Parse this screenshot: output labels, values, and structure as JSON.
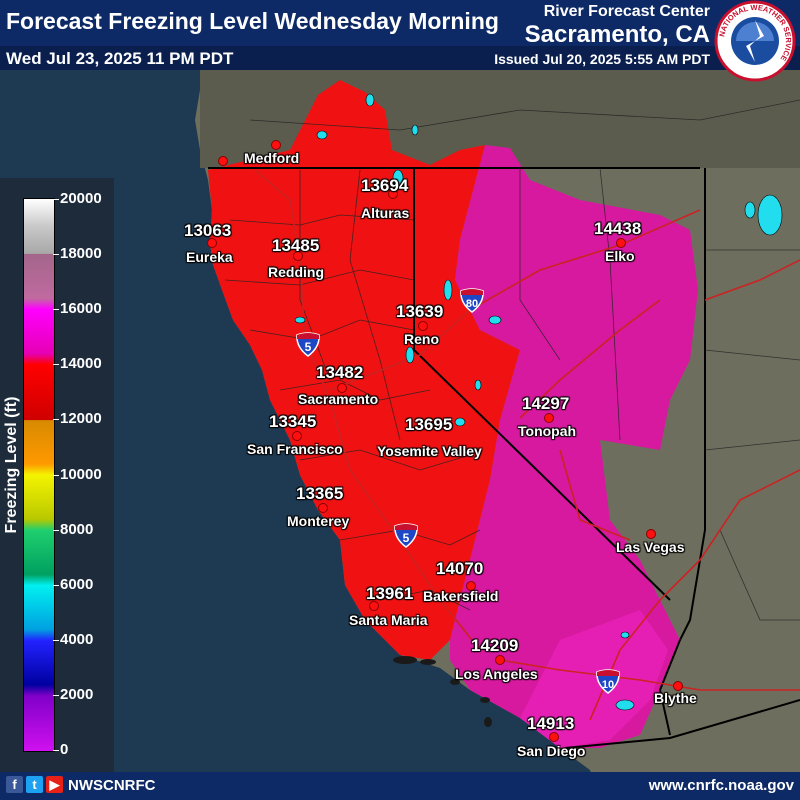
{
  "header": {
    "title": "Forecast Freezing Level Wednesday Morning",
    "valid_time": "Wed Jul 23, 2025 11 PM PDT",
    "agency": "River Forecast Center",
    "office": "Sacramento, CA",
    "issued": "Issued Jul 20, 2025 5:55 AM PDT",
    "logo_icon": "nws-logo-icon",
    "logo_text": "NATIONAL WEATHER SERVICE"
  },
  "legend": {
    "title": "Freezing Level (ft)",
    "ticks": [
      "20000",
      "18000",
      "16000",
      "14000",
      "12000",
      "10000",
      "8000",
      "6000",
      "4000",
      "2000",
      "0"
    ],
    "colors": {
      "white_top": "#ffffff",
      "gray": "#a8a8a8",
      "mauve": "#a3668a",
      "magenta": "#ff00ff",
      "red": "#ff0000",
      "dark_red": "#cf0000",
      "orange": "#ff9900",
      "yellow": "#f4f400",
      "green": "#1fcf6e",
      "cyan": "#00f0f0",
      "blue": "#2222ff",
      "purple": "#8000c8"
    }
  },
  "map": {
    "colors": {
      "ocean": "#1e3a52",
      "land": "#6e6e5e",
      "forecast_red": "#f01212",
      "forecast_magenta": "#d6199e",
      "boundary": "#000000",
      "roads": "#cc2222",
      "lakes": "#22ddee"
    },
    "values": [
      {
        "value": "13694",
        "area": "Alturas"
      },
      {
        "value": "13063",
        "area": "Eureka"
      },
      {
        "value": "13485",
        "area": "Redding"
      },
      {
        "value": "14438",
        "area": "Elko"
      },
      {
        "value": "13639",
        "area": "Reno"
      },
      {
        "value": "13482",
        "area": "Sacramento"
      },
      {
        "value": "14297",
        "area": "Tonopah"
      },
      {
        "value": "13345",
        "area": "San Francisco"
      },
      {
        "value": "13695",
        "area": "Yosemite Valley"
      },
      {
        "value": "13365",
        "area": "Monterey"
      },
      {
        "value": "14070",
        "area": "Bakersfield"
      },
      {
        "value": "13961",
        "area": "Santa Maria"
      },
      {
        "value": "14209",
        "area": "Los Angeles"
      },
      {
        "value": "14913",
        "area": "San Diego"
      }
    ],
    "cities": [
      "Medford",
      "Alturas",
      "Eureka",
      "Redding",
      "Elko",
      "Reno",
      "Sacramento",
      "Tonopah",
      "San Francisco",
      "Yosemite Valley",
      "Monterey",
      "Las Vegas",
      "Bakersfield",
      "Santa Maria",
      "Los Angeles",
      "Blythe",
      "San Diego"
    ],
    "interstates": [
      {
        "route": "80",
        "icon": "interstate-80-shield-icon"
      },
      {
        "route": "5",
        "icon": "interstate-5-shield-icon"
      },
      {
        "route": "5",
        "icon": "interstate-5-shield-icon"
      },
      {
        "route": "10",
        "icon": "interstate-10-shield-icon"
      }
    ]
  },
  "footer": {
    "social_icons": [
      {
        "icon": "facebook-icon",
        "glyph": "f",
        "color": "#3b5998"
      },
      {
        "icon": "twitter-icon",
        "glyph": "t",
        "color": "#1da1f2"
      },
      {
        "icon": "youtube-icon",
        "glyph": "▶",
        "color": "#e62117"
      }
    ],
    "handle": "NWSCNRFC",
    "website": "www.cnrfc.noaa.gov"
  }
}
